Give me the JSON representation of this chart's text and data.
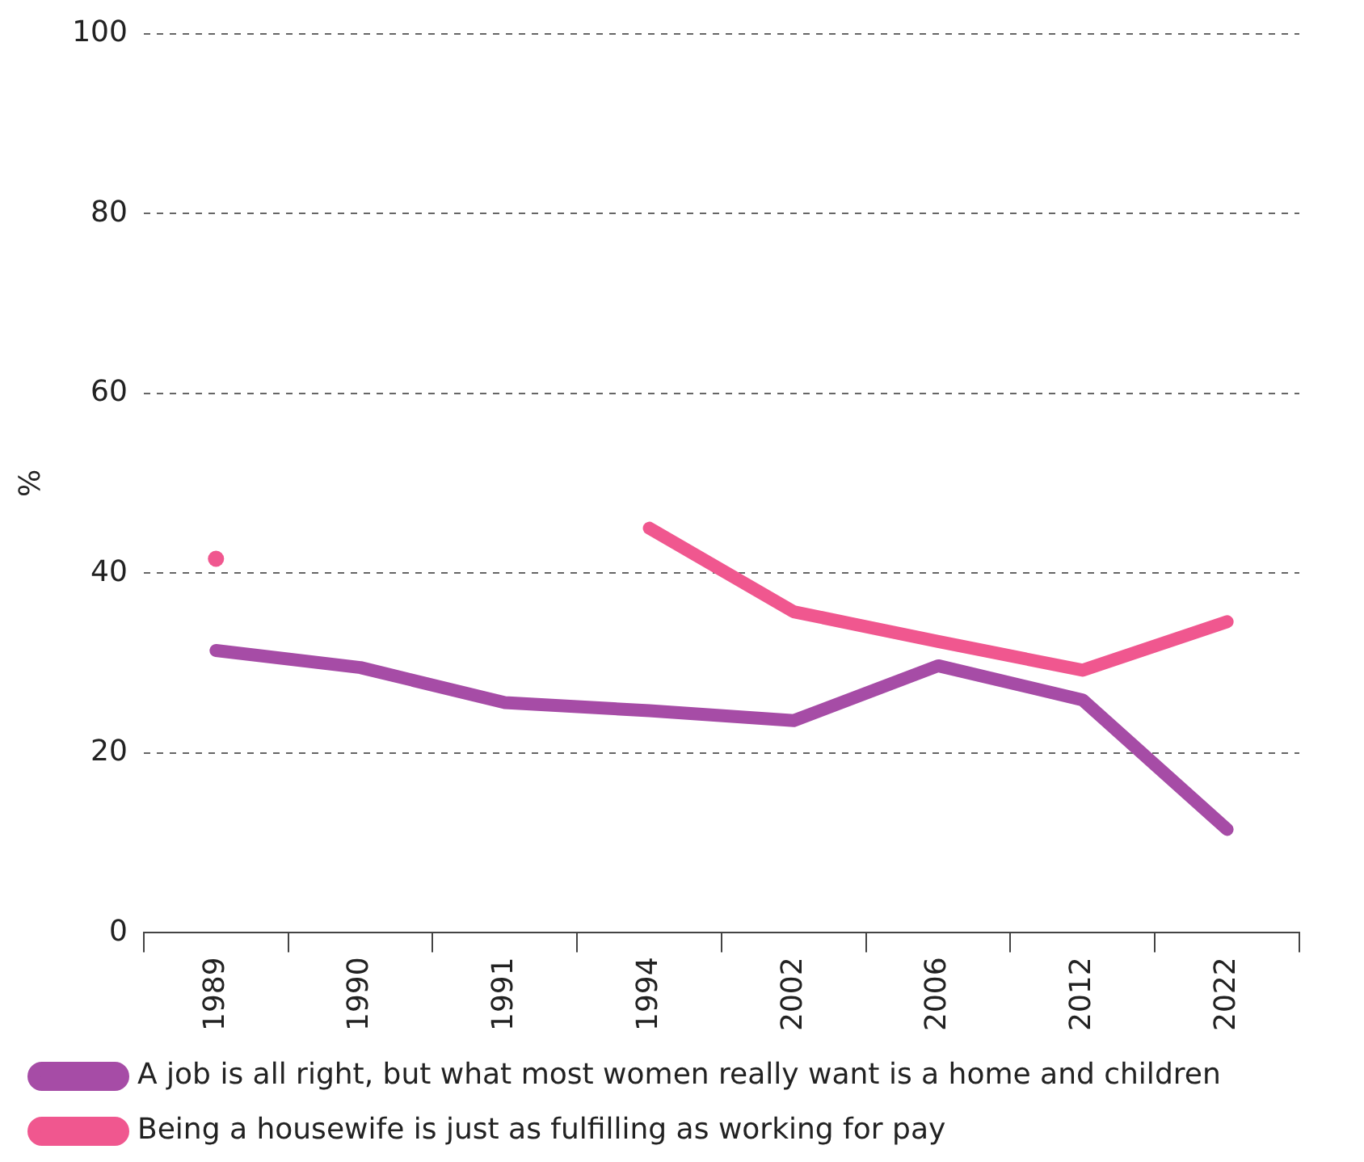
{
  "chart_data": {
    "type": "line",
    "ylabel": "%",
    "categories": [
      "1989",
      "1990",
      "1991",
      "1994",
      "2002",
      "2006",
      "2012",
      "2022"
    ],
    "series": [
      {
        "name": "A job is all right, but what most women really want is a home and children",
        "color": "#a64ca6",
        "values": [
          31.4,
          29.5,
          25.6,
          24.7,
          23.6,
          29.7,
          25.9,
          11.5
        ]
      },
      {
        "name": "Being a housewife is just as fulfilling as working for pay",
        "color": "#f0578f",
        "values": [
          41.6,
          null,
          null,
          45,
          35.7,
          32.4,
          29.2,
          34.6
        ]
      }
    ],
    "ylim": [
      0,
      100
    ],
    "yticks": [
      0,
      20,
      40,
      60,
      80,
      100
    ],
    "grid": "y",
    "legend": "bottom left",
    "marker": "none",
    "line_style": "solid"
  }
}
